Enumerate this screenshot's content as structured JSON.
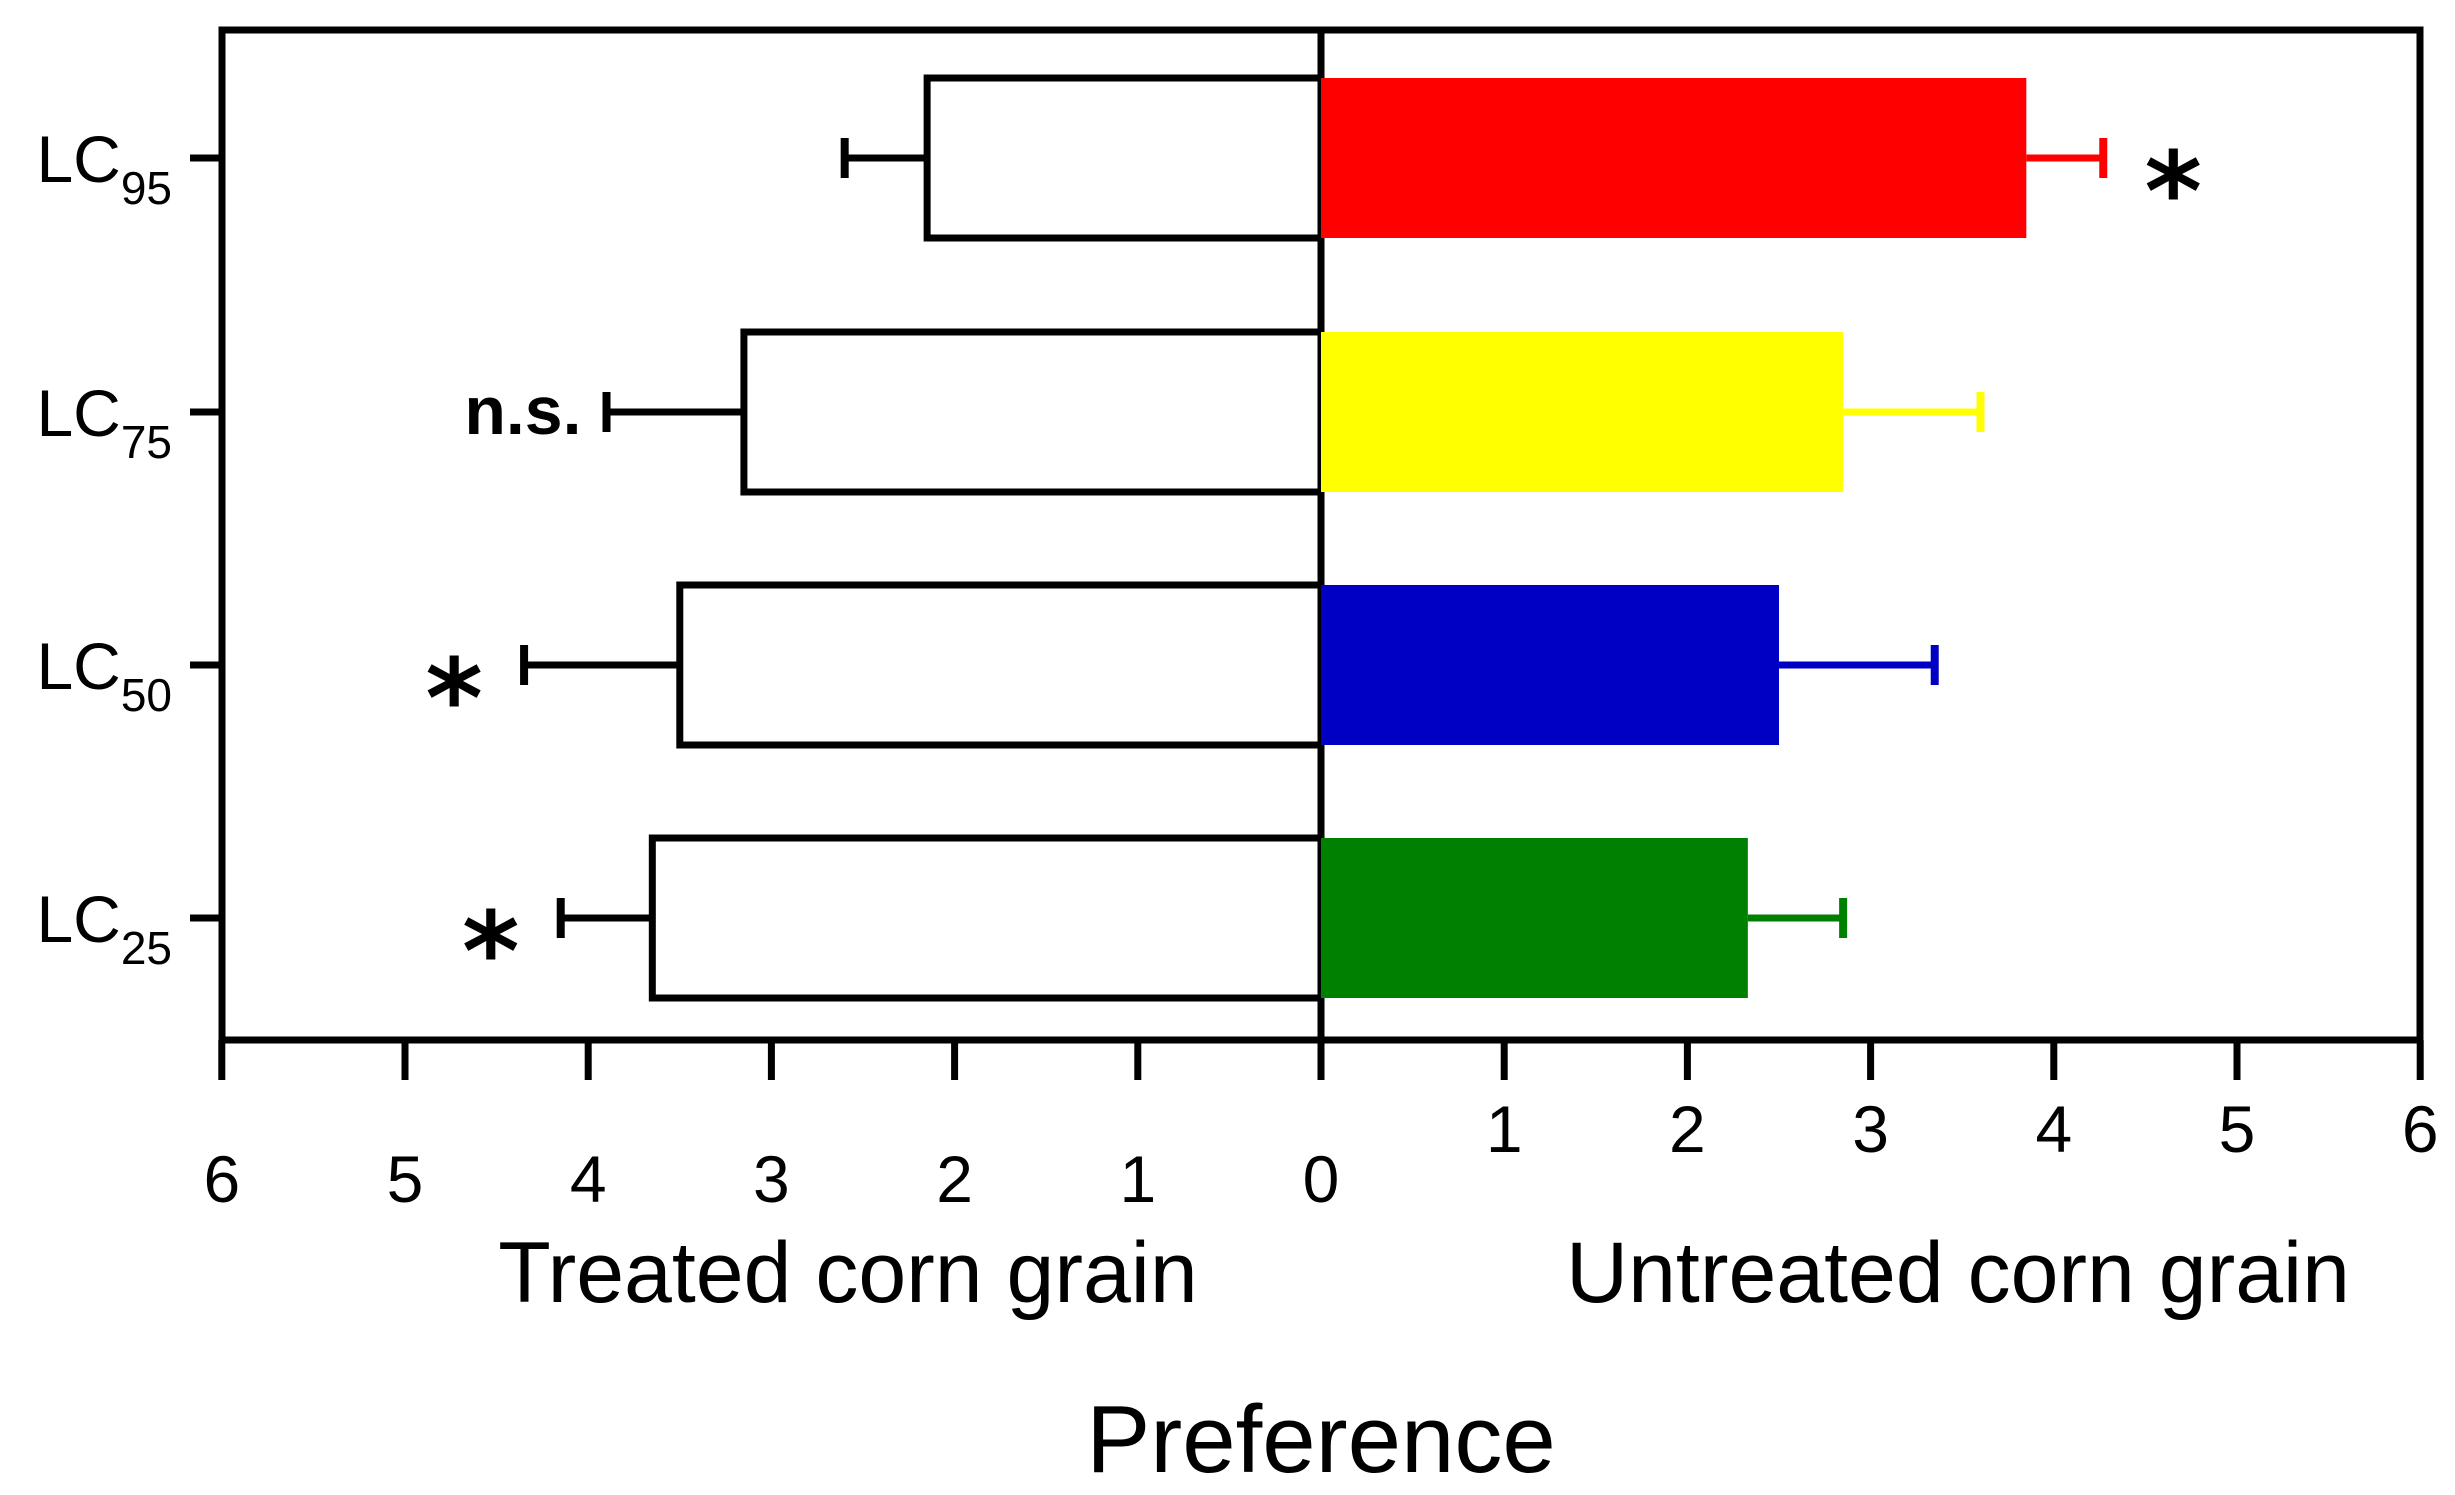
{
  "chart_data": {
    "type": "bar",
    "orientation": "horizontal-diverging",
    "categories": [
      {
        "prefix": "LC",
        "sub": "95"
      },
      {
        "prefix": "LC",
        "sub": "75"
      },
      {
        "prefix": "LC",
        "sub": "50"
      },
      {
        "prefix": "LC",
        "sub": "25"
      }
    ],
    "series": [
      {
        "name": "Treated corn grain",
        "side": "left",
        "fill": "#ffffff",
        "stroke": "#000000",
        "values": [
          2.15,
          3.15,
          3.5,
          3.65
        ],
        "errors": [
          0.45,
          0.75,
          0.85,
          0.5
        ]
      },
      {
        "name": "Untreated corn grain",
        "side": "right",
        "colors": [
          "#ff0000",
          "#ffff00",
          "#0000c4",
          "#008000"
        ],
        "values": [
          3.85,
          2.85,
          2.5,
          2.33
        ],
        "errors": [
          0.42,
          0.75,
          0.85,
          0.52
        ]
      }
    ],
    "significance": [
      {
        "category": 0,
        "side": "right",
        "label": "*"
      },
      {
        "category": 1,
        "side": "left",
        "label": "n.s."
      },
      {
        "category": 2,
        "side": "left",
        "label": "*"
      },
      {
        "category": 3,
        "side": "left",
        "label": "*"
      }
    ],
    "x_range": [
      0,
      6
    ],
    "left_ticks": [
      "6",
      "5",
      "4",
      "3",
      "2",
      "1",
      "0"
    ],
    "right_ticks": [
      "1",
      "2",
      "3",
      "4",
      "5",
      "6"
    ],
    "left_xlabel": "Treated corn grain",
    "right_xlabel": "Untreated corn grain",
    "xlabel": "Preference",
    "grid": false,
    "legend": "none"
  }
}
